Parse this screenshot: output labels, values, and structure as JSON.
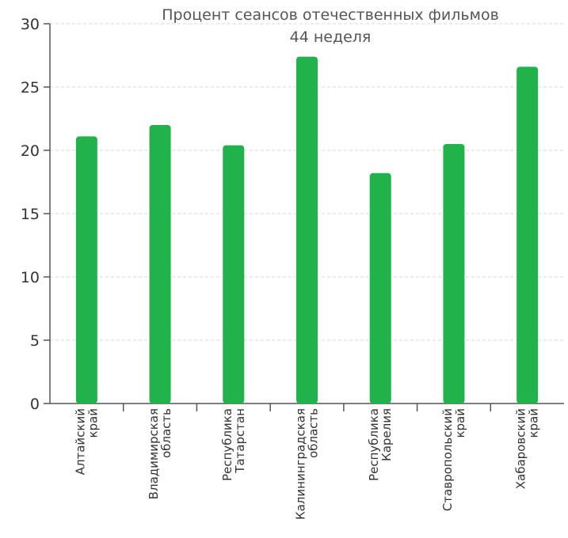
{
  "chart_data": {
    "type": "bar",
    "title": "Процент сеансов отечественных фильмов",
    "subtitle": "44 неделя",
    "categories": [
      [
        "Алтайский",
        "край"
      ],
      [
        "Владимирская",
        "область"
      ],
      [
        "Республика",
        "Татарстан"
      ],
      [
        "Калининградская",
        "область"
      ],
      [
        "Республика",
        "Карелия"
      ],
      [
        "Ставропольский",
        "край"
      ],
      [
        "Хабаровский",
        "край"
      ]
    ],
    "values": [
      21.1,
      22.0,
      20.4,
      27.4,
      18.2,
      20.5,
      26.6
    ],
    "ylim": [
      0,
      30
    ],
    "yticks": [
      0,
      5,
      10,
      15,
      20,
      25,
      30
    ],
    "grid": true,
    "bar_color": "#22b24c",
    "grid_color": "#d9d9d9",
    "axis_color": "#555555"
  }
}
